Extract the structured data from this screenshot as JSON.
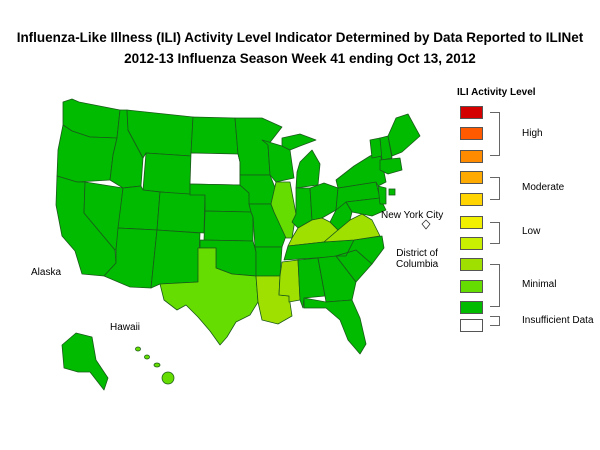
{
  "title_line1": "Influenza-Like Illness (ILI) Activity Level Indicator Determined by Data Reported to ILINet",
  "title_line2": "2012-13  Influenza Season Week  41 ending Oct 13, 2012",
  "map_labels": {
    "alaska": "Alaska",
    "hawaii": "Hawaii",
    "nyc": "New York City",
    "dc_line1": "District of",
    "dc_line2": "Columbia"
  },
  "legend": {
    "title": "ILI Activity Level",
    "swatches": [
      "#d40000",
      "#ff5a00",
      "#ff8c00",
      "#ffaa00",
      "#ffd400",
      "#f0f000",
      "#c8f000",
      "#a0e000",
      "#66dd00",
      "#00bb00",
      "#ffffff"
    ],
    "groups": {
      "high": "High",
      "moderate": "Moderate",
      "low": "Low",
      "minimal": "Minimal",
      "insufficient": "Insufficient Data"
    }
  },
  "activity_colors": {
    "minimal_level_1": "#00bb00",
    "minimal_level_2": "#66dd00",
    "minimal_level_3": "#a0e000",
    "insufficient": "#ffffff"
  },
  "state_levels": {
    "South Dakota": "Insufficient Data",
    "Texas": "Minimal (level 2)",
    "Oklahoma": "Minimal (level 1)",
    "Louisiana": "Minimal (level 3)",
    "Mississippi": "Minimal (level 3)",
    "Kentucky": "Minimal (level 3)",
    "Virginia": "Minimal (level 3)",
    "Illinois": "Minimal (level 2)",
    "Hawaii": "Minimal (level 2)",
    "default": "Minimal (level 1)"
  }
}
